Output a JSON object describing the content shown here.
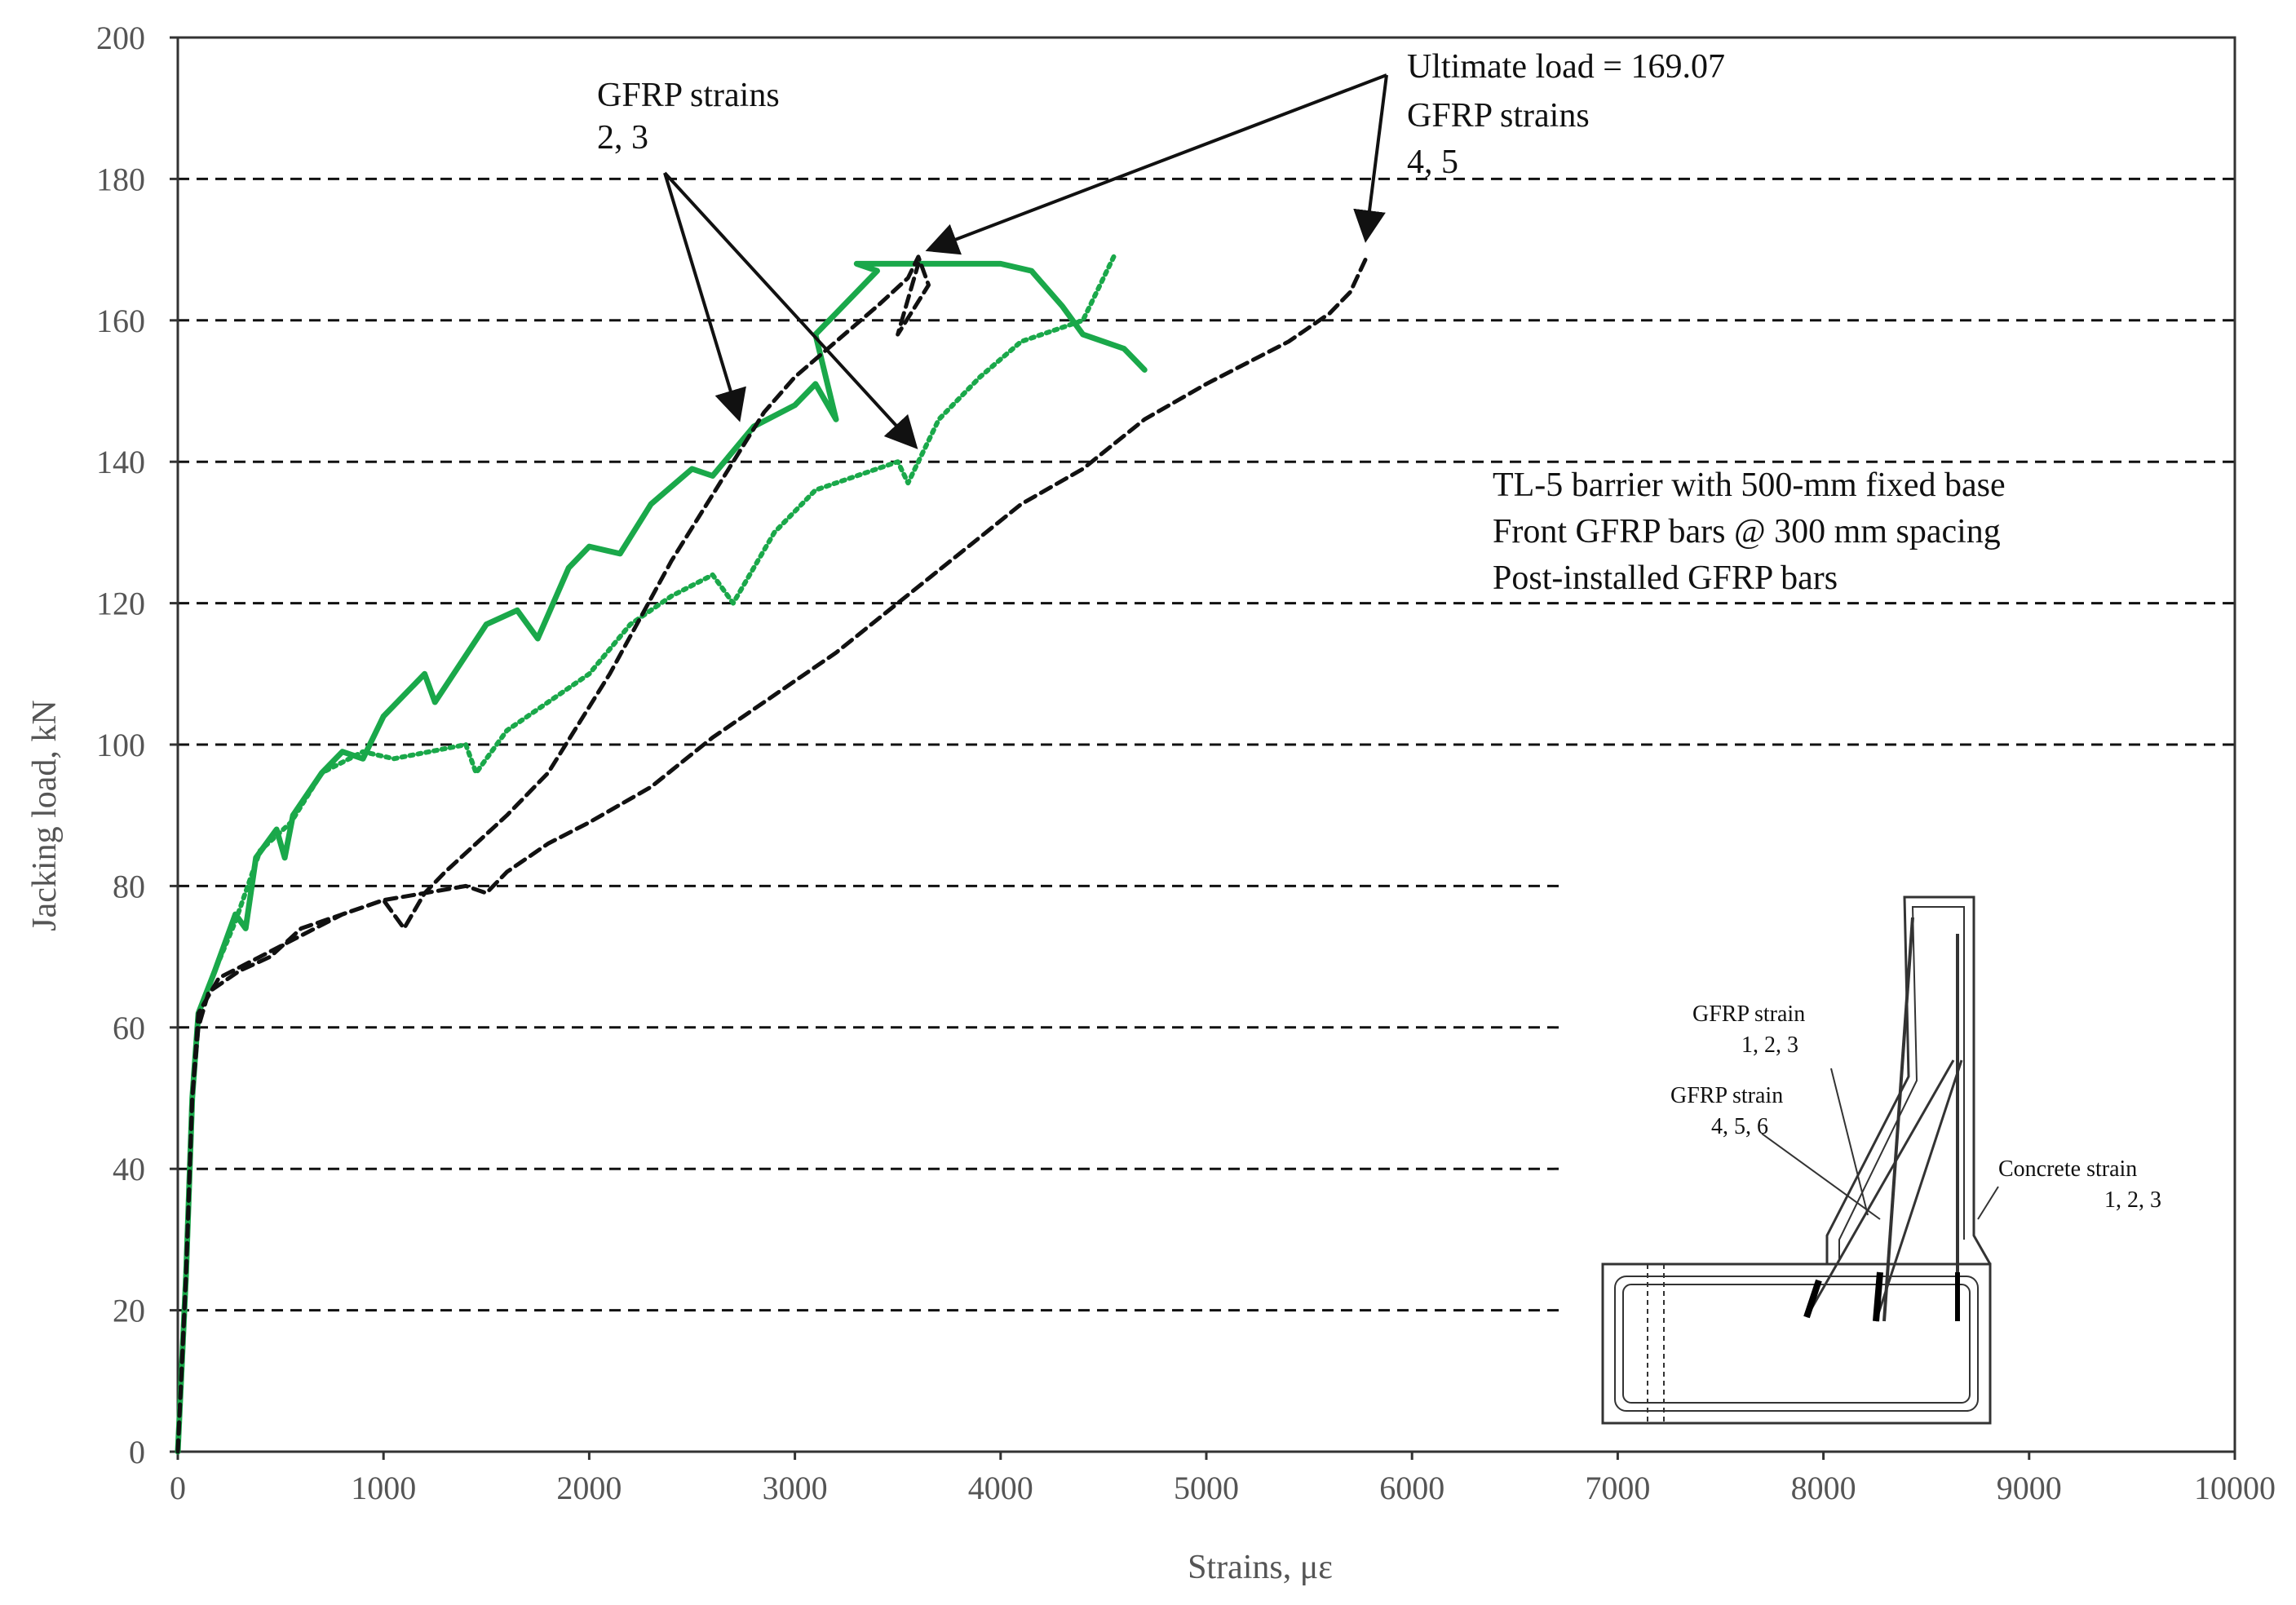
{
  "chart_data": {
    "type": "line",
    "xlabel": "Strains, με",
    "ylabel": "Jacking load, kN",
    "xlim": [
      0,
      10000
    ],
    "ylim": [
      0,
      200
    ],
    "x_ticks": [
      "0",
      "1000",
      "2000",
      "3000",
      "4000",
      "5000",
      "6000",
      "7000",
      "8000",
      "9000",
      "10000"
    ],
    "y_ticks": [
      "0",
      "20",
      "40",
      "60",
      "80",
      "100",
      "120",
      "140",
      "160",
      "180",
      "200"
    ],
    "grid": "horizontal dashed",
    "colors": {
      "green": "#1aa84a",
      "black": "#111111",
      "axis": "#333333"
    },
    "series": [
      {
        "name": "GFRP strain 2",
        "color": "#1aa84a",
        "dash": "solid",
        "points": [
          [
            0,
            0
          ],
          [
            40,
            25
          ],
          [
            70,
            50
          ],
          [
            100,
            62
          ],
          [
            180,
            68
          ],
          [
            280,
            76
          ],
          [
            330,
            74
          ],
          [
            380,
            84
          ],
          [
            480,
            88
          ],
          [
            520,
            84
          ],
          [
            560,
            90
          ],
          [
            700,
            96
          ],
          [
            800,
            99
          ],
          [
            900,
            98
          ],
          [
            1000,
            104
          ],
          [
            1200,
            110
          ],
          [
            1250,
            106
          ],
          [
            1500,
            117
          ],
          [
            1650,
            119
          ],
          [
            1750,
            115
          ],
          [
            1900,
            125
          ],
          [
            2000,
            128
          ],
          [
            2150,
            127
          ],
          [
            2300,
            134
          ],
          [
            2500,
            139
          ],
          [
            2600,
            138
          ],
          [
            2800,
            145
          ],
          [
            3000,
            148
          ],
          [
            3100,
            151
          ],
          [
            3200,
            146
          ],
          [
            3100,
            158
          ],
          [
            3300,
            164
          ],
          [
            3400,
            167
          ],
          [
            3300,
            168
          ],
          [
            3600,
            168
          ],
          [
            3800,
            168
          ],
          [
            4000,
            168
          ],
          [
            4150,
            167
          ],
          [
            4300,
            162
          ],
          [
            4400,
            158
          ],
          [
            4600,
            156
          ],
          [
            4700,
            153
          ]
        ]
      },
      {
        "name": "GFRP strain 3",
        "color": "#1aa84a",
        "dash": "dotted",
        "points": [
          [
            0,
            0
          ],
          [
            40,
            25
          ],
          [
            70,
            50
          ],
          [
            100,
            62
          ],
          [
            180,
            68
          ],
          [
            280,
            75
          ],
          [
            400,
            85
          ],
          [
            550,
            89
          ],
          [
            700,
            96
          ],
          [
            900,
            99
          ],
          [
            1050,
            98
          ],
          [
            1400,
            100
          ],
          [
            1450,
            96
          ],
          [
            1600,
            102
          ],
          [
            1800,
            106
          ],
          [
            2000,
            110
          ],
          [
            2200,
            117
          ],
          [
            2400,
            121
          ],
          [
            2600,
            124
          ],
          [
            2700,
            120
          ],
          [
            2900,
            130
          ],
          [
            3100,
            136
          ],
          [
            3300,
            138
          ],
          [
            3500,
            140
          ],
          [
            3550,
            137
          ],
          [
            3700,
            146
          ],
          [
            3900,
            152
          ],
          [
            4100,
            157
          ],
          [
            4300,
            159
          ],
          [
            4400,
            160
          ],
          [
            4550,
            169
          ]
        ]
      },
      {
        "name": "GFRP strain 4",
        "color": "#111111",
        "dash": "dashed",
        "points": [
          [
            0,
            0
          ],
          [
            40,
            25
          ],
          [
            70,
            50
          ],
          [
            100,
            60
          ],
          [
            150,
            65
          ],
          [
            300,
            68
          ],
          [
            450,
            70
          ],
          [
            600,
            74
          ],
          [
            800,
            76
          ],
          [
            1000,
            78
          ],
          [
            1100,
            74
          ],
          [
            1200,
            79
          ],
          [
            1300,
            82
          ],
          [
            1450,
            86
          ],
          [
            1600,
            90
          ],
          [
            1800,
            96
          ],
          [
            1950,
            103
          ],
          [
            2100,
            110
          ],
          [
            2250,
            118
          ],
          [
            2400,
            126
          ],
          [
            2550,
            133
          ],
          [
            2700,
            140
          ],
          [
            2850,
            147
          ],
          [
            3000,
            152
          ],
          [
            3200,
            157
          ],
          [
            3400,
            162
          ],
          [
            3550,
            166
          ],
          [
            3600,
            169
          ],
          [
            3650,
            165
          ],
          [
            3500,
            158
          ],
          [
            3600,
            168
          ]
        ]
      },
      {
        "name": "GFRP strain 5",
        "color": "#111111",
        "dash": "dashed",
        "points": [
          [
            0,
            0
          ],
          [
            40,
            25
          ],
          [
            70,
            50
          ],
          [
            100,
            62
          ],
          [
            200,
            67
          ],
          [
            400,
            70
          ],
          [
            600,
            73
          ],
          [
            800,
            76
          ],
          [
            1000,
            78
          ],
          [
            1200,
            79
          ],
          [
            1400,
            80
          ],
          [
            1500,
            79
          ],
          [
            1600,
            82
          ],
          [
            1800,
            86
          ],
          [
            2000,
            89
          ],
          [
            2300,
            94
          ],
          [
            2600,
            101
          ],
          [
            2900,
            107
          ],
          [
            3200,
            113
          ],
          [
            3500,
            120
          ],
          [
            3800,
            127
          ],
          [
            4100,
            134
          ],
          [
            4400,
            139
          ],
          [
            4700,
            146
          ],
          [
            5000,
            151
          ],
          [
            5200,
            154
          ],
          [
            5400,
            157
          ],
          [
            5500,
            159
          ],
          [
            5600,
            161
          ],
          [
            5700,
            164
          ],
          [
            5780,
            169
          ]
        ]
      }
    ],
    "annotations": {
      "gfrp_23_line1": "GFRP strains",
      "gfrp_23_line2": "2, 3",
      "ultimate_line1": "Ultimate load = 169.07",
      "ultimate_line2": "GFRP strains",
      "ultimate_line3": "4, 5",
      "desc_line1": "TL-5 barrier with 500-mm fixed base",
      "desc_line2": "Front GFRP bars @ 300 mm spacing",
      "desc_line3": "Post-installed GFRP bars"
    },
    "inset": {
      "label1_line1": "GFRP strain",
      "label1_line2": "1, 2, 3",
      "label2_line1": "GFRP strain",
      "label2_line2": "4, 5, 6",
      "label3_line1": "Concrete strain",
      "label3_line2": "1, 2, 3"
    }
  }
}
